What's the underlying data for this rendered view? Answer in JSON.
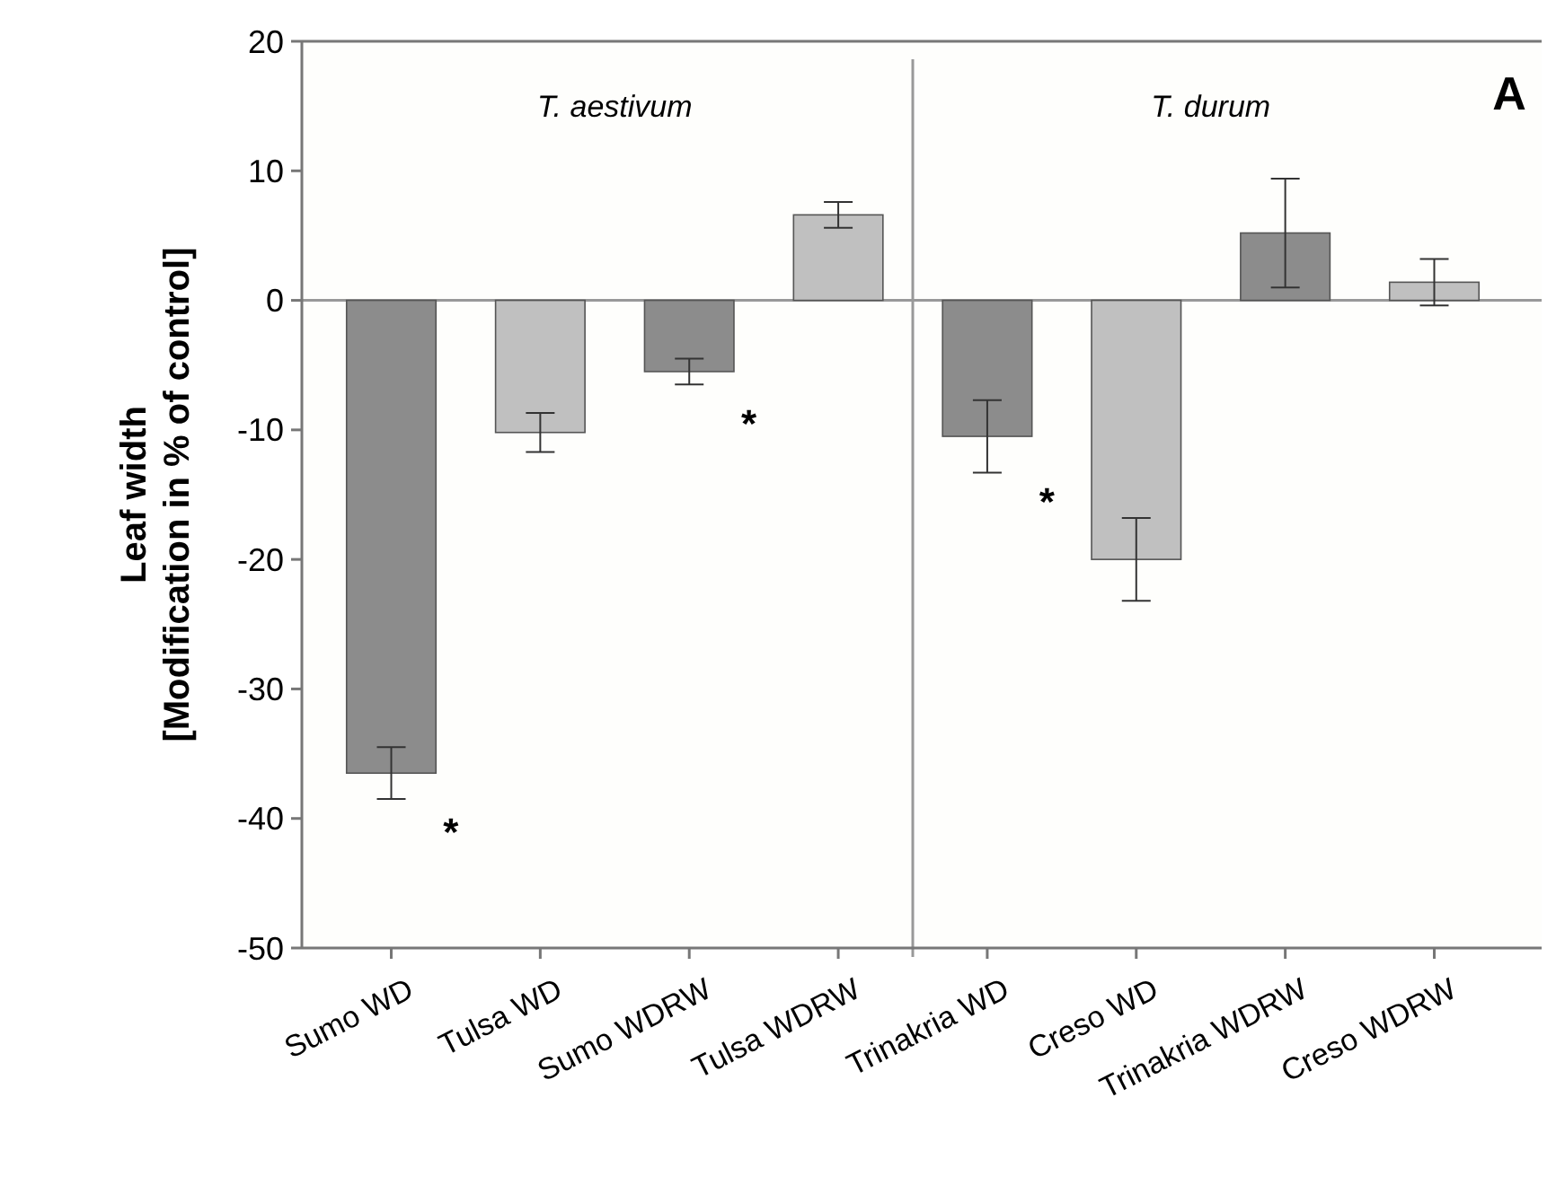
{
  "chart_data": {
    "type": "bar",
    "ylabel": "Leaf width\n[Modification in % of control]",
    "categories": [
      "Sumo WD",
      "Tulsa WD",
      "Sumo WDRW",
      "Tulsa WDRW",
      "Trinakria WD",
      "Creso WD",
      "Trinakria WDRW",
      "Creso WDRW"
    ],
    "values": [
      -36.5,
      -10.2,
      -5.5,
      6.6,
      -10.5,
      -20,
      5.2,
      1.4
    ],
    "colors": [
      "#8c8c8c",
      "#c0c0c0",
      "#8c8c8c",
      "#c0c0c0",
      "#8c8c8c",
      "#c0c0c0",
      "#8c8c8c",
      "#c0c0c0"
    ],
    "errors": [
      2,
      1.5,
      1,
      1,
      2.8,
      3.2,
      4.2,
      1.8
    ],
    "ylim": [
      -50,
      20
    ],
    "yticks": [
      -50,
      -40,
      -30,
      -20,
      -10,
      0,
      10,
      20
    ],
    "grid": false,
    "ref_lines": [
      {
        "axis": "y",
        "value": 0,
        "color": "#999999"
      }
    ],
    "annotations": [
      "T. aestivum",
      "T. durum",
      "A",
      "*",
      "*",
      "*"
    ]
  }
}
